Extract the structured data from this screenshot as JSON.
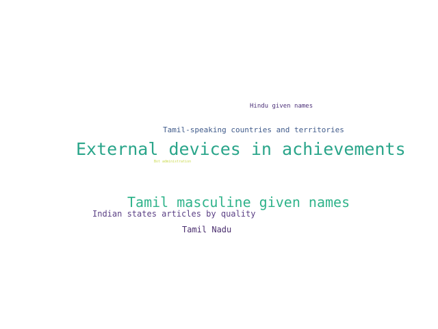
{
  "word_cloud": {
    "words": [
      {
        "text": "Hindu given names",
        "color": "#4b2f78"
      },
      {
        "text": "Tamil-speaking countries and territories",
        "color": "#3f5a8a"
      },
      {
        "text": "External devices in achievements",
        "color": "#2aa58a"
      },
      {
        "text": "Bot administration",
        "color": "#c8d84a"
      },
      {
        "text": "Tamil masculine given names",
        "color": "#2fb38a"
      },
      {
        "text": "Indian states articles by quality",
        "color": "#5a3f84"
      },
      {
        "text": "Tamil Nadu",
        "color": "#4a2e6e"
      }
    ]
  }
}
